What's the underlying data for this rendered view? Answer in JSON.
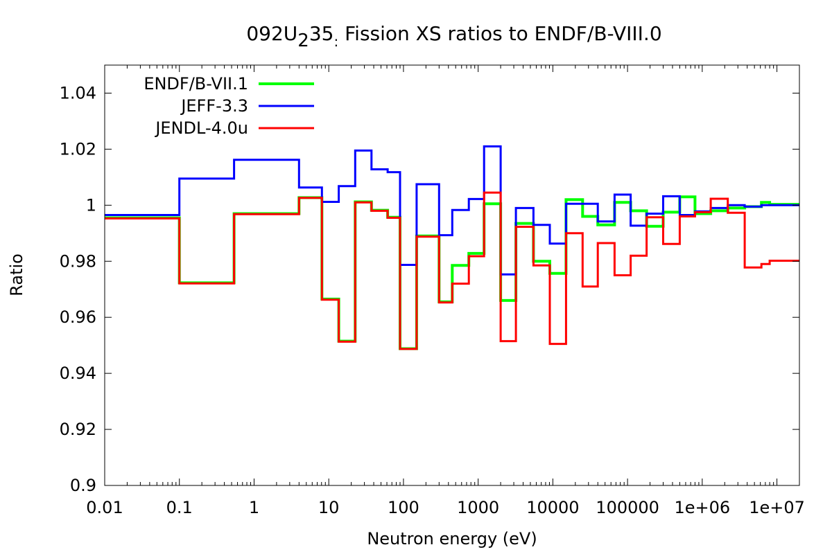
{
  "chart_data": {
    "type": "line",
    "step": true,
    "title_main": "092U",
    "title_sub": "2",
    "title_after_sub": "35",
    "title_sub2": ":",
    "title_rest": " Fission XS ratios to ENDF/B-VIII.0",
    "xlabel": "Neutron energy (eV)",
    "ylabel": "Ratio",
    "xscale": "log",
    "xlim": [
      0.01,
      20000000
    ],
    "ylim": [
      0.9,
      1.05
    ],
    "grid": false,
    "legend_position": "top-left",
    "x_ticks": [
      {
        "value": 0.01,
        "label": "0.01"
      },
      {
        "value": 0.1,
        "label": "0.1"
      },
      {
        "value": 1,
        "label": "1"
      },
      {
        "value": 10,
        "label": "10"
      },
      {
        "value": 100,
        "label": "100"
      },
      {
        "value": 1000,
        "label": "1000"
      },
      {
        "value": 10000,
        "label": "10000"
      },
      {
        "value": 100000,
        "label": "100000"
      },
      {
        "value": 1000000,
        "label": "1e+06"
      },
      {
        "value": 10000000,
        "label": "1e+07"
      }
    ],
    "y_ticks": [
      {
        "value": 0.9,
        "label": "0.9"
      },
      {
        "value": 0.92,
        "label": "0.92"
      },
      {
        "value": 0.94,
        "label": "0.94"
      },
      {
        "value": 0.96,
        "label": "0.96"
      },
      {
        "value": 0.98,
        "label": "0.98"
      },
      {
        "value": 1.0,
        "label": "1"
      },
      {
        "value": 1.02,
        "label": "1.02"
      },
      {
        "value": 1.04,
        "label": "1.04"
      }
    ],
    "series": [
      {
        "name": "ENDF/B-VII.1",
        "color": "#00ff00",
        "x": [
          0.01,
          0.1,
          0.54,
          4,
          8.1,
          13.6,
          22.6,
          37.3,
          61.4,
          90,
          150,
          300,
          450,
          750,
          1200,
          2000,
          3200,
          5500,
          9100,
          15000,
          25000,
          40000,
          67000,
          110000,
          180000,
          300000,
          500000,
          800000,
          1300000,
          2200000,
          3700000,
          6200000,
          8000000,
          10000000,
          20000000
        ],
        "values": [
          0.9955,
          0.9723,
          0.997,
          1.0027,
          0.9665,
          0.9515,
          1.0012,
          0.9982,
          0.9957,
          0.9488,
          0.989,
          0.9655,
          0.9785,
          0.9828,
          1.0005,
          0.966,
          0.9935,
          0.98,
          0.9757,
          1.002,
          0.996,
          0.993,
          1.001,
          0.998,
          0.9925,
          0.9975,
          1.003,
          0.997,
          0.998,
          0.999,
          0.9995,
          1.001,
          1.0003,
          1.0003,
          1.0003
        ]
      },
      {
        "name": "JEFF-3.3",
        "color": "#0000ff",
        "x": [
          0.01,
          0.1,
          0.54,
          4,
          8.1,
          13.6,
          22.6,
          37.3,
          61.4,
          90,
          150,
          300,
          450,
          750,
          1200,
          2000,
          3200,
          5500,
          9100,
          15000,
          25000,
          40000,
          67000,
          110000,
          180000,
          300000,
          500000,
          800000,
          1300000,
          2200000,
          3700000,
          6200000,
          10000000,
          20000000
        ],
        "values": [
          0.9965,
          1.0095,
          1.0162,
          1.0063,
          1.0012,
          1.0068,
          1.0195,
          1.0128,
          1.0118,
          0.9787,
          1.0075,
          0.9893,
          0.9983,
          1.0022,
          1.021,
          0.9753,
          0.999,
          0.993,
          0.9863,
          1.0005,
          1.0005,
          0.9942,
          1.0038,
          0.9927,
          0.997,
          1.0032,
          0.9965,
          0.9978,
          0.999,
          1.0,
          0.9995,
          1.0,
          1.0,
          1.0
        ]
      },
      {
        "name": "JENDL-4.0u",
        "color": "#ff0000",
        "x": [
          0.01,
          0.1,
          0.54,
          4,
          8.1,
          13.6,
          22.6,
          37.3,
          61.4,
          90,
          150,
          300,
          450,
          750,
          1200,
          2000,
          3200,
          5500,
          9100,
          15000,
          25000,
          40000,
          67000,
          110000,
          180000,
          300000,
          500000,
          800000,
          1300000,
          2200000,
          3700000,
          6200000,
          8000000,
          10000000,
          20000000
        ],
        "values": [
          0.9953,
          0.9721,
          0.9968,
          1.0026,
          0.9663,
          0.9513,
          1.001,
          0.998,
          0.9955,
          0.9487,
          0.9888,
          0.9653,
          0.972,
          0.9818,
          1.0045,
          0.9515,
          0.9923,
          0.9785,
          0.9505,
          0.99,
          0.971,
          0.9865,
          0.975,
          0.982,
          0.9957,
          0.9862,
          0.996,
          0.9975,
          1.0023,
          0.9973,
          0.9778,
          0.979,
          0.9802,
          0.9802,
          0.9802
        ]
      }
    ]
  }
}
